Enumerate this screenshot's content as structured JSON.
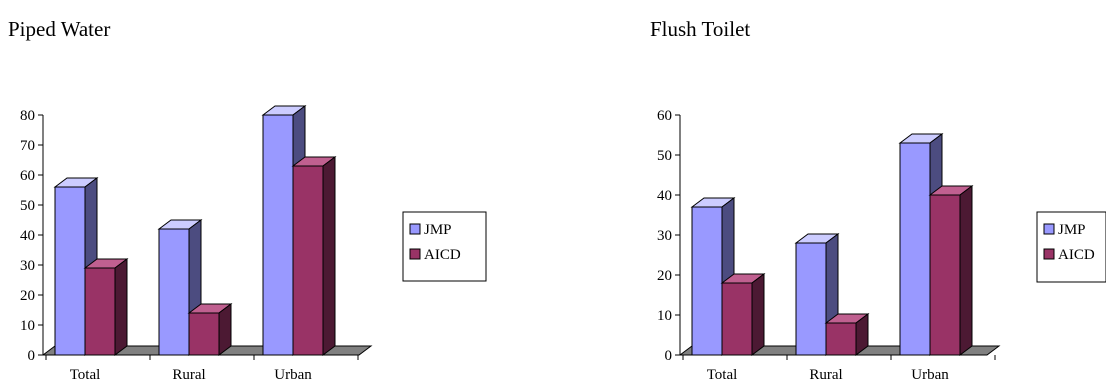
{
  "chart_data": [
    {
      "type": "bar",
      "title": "Piped Water",
      "categories": [
        "Total",
        "Rural",
        "Urban"
      ],
      "series": [
        {
          "name": "JMP",
          "values": [
            56,
            42,
            80
          ]
        },
        {
          "name": "AICD",
          "values": [
            29,
            14,
            63
          ]
        }
      ],
      "ylim": [
        0,
        80
      ],
      "yticks": [
        0,
        10,
        20,
        30,
        40,
        50,
        60,
        70,
        80
      ],
      "grid": false,
      "legend": "right",
      "three_d": true
    },
    {
      "type": "bar",
      "title": "Flush Toilet",
      "categories": [
        "Total",
        "Rural",
        "Urban"
      ],
      "series": [
        {
          "name": "JMP",
          "values": [
            37,
            28,
            53
          ]
        },
        {
          "name": "AICD",
          "values": [
            18,
            8,
            40
          ]
        }
      ],
      "ylim": [
        0,
        60
      ],
      "yticks": [
        0,
        10,
        20,
        30,
        40,
        50,
        60
      ],
      "grid": false,
      "legend": "right",
      "three_d": true
    }
  ],
  "colors": {
    "JMP": {
      "front": "#9999ff",
      "side": "#4c4c80",
      "top": "#ccccff"
    },
    "AICD": {
      "front": "#993366",
      "side": "#4c1933",
      "top": "#c06090"
    },
    "floor": "#808080"
  }
}
